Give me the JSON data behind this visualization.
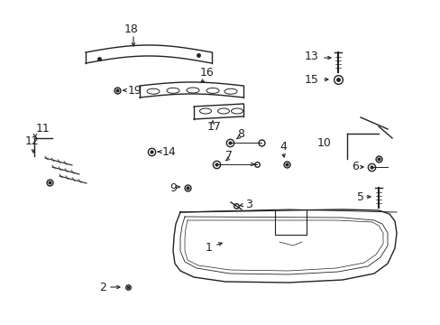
{
  "bg_color": "#ffffff",
  "fg_color": "#222222",
  "fig_width": 4.89,
  "fig_height": 3.6,
  "dpi": 100
}
